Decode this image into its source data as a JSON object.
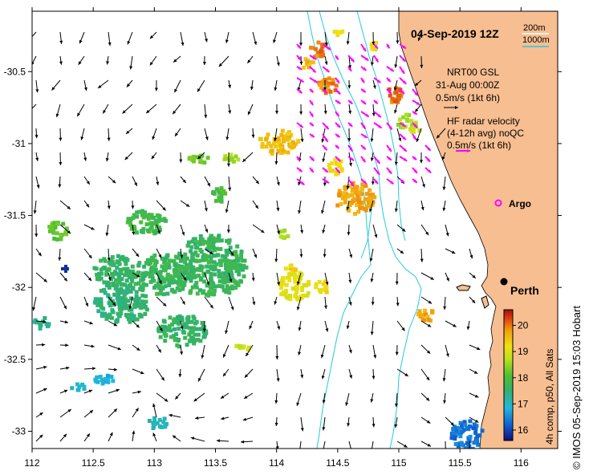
{
  "title": "04-Sep-2019 12Z",
  "map": {
    "lon_range": [
      112,
      116.3
    ],
    "lat_range": [
      -33.12,
      -30.08
    ],
    "x_ticks": [
      "112",
      "112.5",
      "113",
      "113.5",
      "114",
      "114.5",
      "115",
      "115.5",
      "116"
    ],
    "y_ticks": [
      "-30.5",
      "-31",
      "-31.5",
      "-32",
      "-32.5",
      "-33"
    ]
  },
  "isobaths": {
    "shallow_label": "200m",
    "deep_label": "1000m",
    "colour": "#22ccdd"
  },
  "legend": {
    "nrt_title": "NRT00 GSL",
    "nrt_date": "31-Aug 00:00Z",
    "nrt_scale": "0.5m/s (1kt 6h)",
    "hf_title": "HF radar velocity",
    "hf_subtitle": "(4-12h avg) noQC",
    "hf_scale": "0.5m/s (1kt 6h)",
    "argo_label": "Argo"
  },
  "place_label": "Perth",
  "colorbar": {
    "ticks": [
      "20",
      "19",
      "18",
      "17",
      "16"
    ],
    "caption": "4h comp, p50, All Sats",
    "range": [
      15.6,
      20.6
    ]
  },
  "credit": "© IMOS 05-Sep-2019 15:03 Hobart",
  "colors": {
    "land": "#f7be91",
    "argo": "#ff00ff",
    "hf_arrow": "#ff00ff",
    "geostrophic_arrow": "#000000"
  }
}
